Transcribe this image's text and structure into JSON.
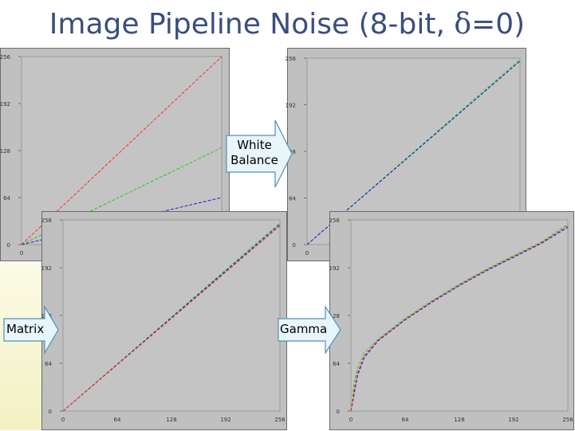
{
  "title": {
    "main": "Image Pipeline Noise (8-bit, ",
    "delta": "δ",
    "tail": "=0)"
  },
  "arrows": {
    "white_balance": {
      "line1": "White",
      "line2": "Balance"
    },
    "matrix": "Matrix",
    "gamma": "Gamma"
  },
  "colors": {
    "background": "#c0c0c0",
    "plot": "#c0c0c0",
    "frame": "#6b6b6b",
    "red": "#ff2a2a",
    "green": "#19d219",
    "blue": "#1a1ad8",
    "arrow_fill": "#e8f5fa",
    "arrow_stroke": "#4f92ba",
    "title": "#3a4e7d"
  },
  "chart_data": [
    {
      "id": "raw",
      "type": "line",
      "title": "",
      "xlabel": "",
      "ylabel": "",
      "xlim": [
        0,
        256
      ],
      "ylim": [
        0,
        256
      ],
      "yticks": [
        "0",
        "64",
        "128",
        "192",
        "256"
      ],
      "xticks": [
        "0"
      ],
      "grid": false,
      "series": [
        {
          "color": "red",
          "x": [
            0,
            256
          ],
          "y": [
            0,
            256
          ]
        },
        {
          "color": "green",
          "x": [
            0,
            256
          ],
          "y": [
            0,
            132
          ]
        },
        {
          "color": "blue",
          "x": [
            0,
            256
          ],
          "y": [
            0,
            64
          ]
        }
      ]
    },
    {
      "id": "white-balance",
      "type": "line",
      "title": "",
      "xlabel": "",
      "ylabel": "",
      "xlim": [
        0,
        256
      ],
      "ylim": [
        0,
        256
      ],
      "yticks": [
        "0",
        "64",
        "128",
        "192",
        "256"
      ],
      "xticks": [
        "0"
      ],
      "grid": false,
      "series": [
        {
          "color": "green",
          "x": [
            0,
            256
          ],
          "y": [
            0,
            254
          ]
        },
        {
          "color": "blue",
          "x": [
            0,
            256
          ],
          "y": [
            0,
            252
          ]
        }
      ]
    },
    {
      "id": "matrix",
      "type": "line",
      "title": "",
      "xlabel": "",
      "ylabel": "",
      "xlim": [
        0,
        256
      ],
      "ylim": [
        0,
        256
      ],
      "xticks": [
        "0",
        "64",
        "128",
        "192",
        "256"
      ],
      "yticks": [
        "0",
        "64",
        "128",
        "192",
        "256"
      ],
      "grid": false,
      "series": [
        {
          "color": "green",
          "x": [
            0,
            256
          ],
          "y": [
            0,
            252
          ]
        },
        {
          "color": "blue",
          "x": [
            0,
            256
          ],
          "y": [
            0,
            250
          ]
        },
        {
          "color": "red",
          "x": [
            0,
            256
          ],
          "y": [
            0,
            248
          ]
        }
      ]
    },
    {
      "id": "gamma",
      "type": "line",
      "title": "",
      "xlabel": "",
      "ylabel": "",
      "xlim": [
        0,
        256
      ],
      "ylim": [
        0,
        256
      ],
      "xticks": [
        "0",
        "64",
        "128",
        "192",
        "256"
      ],
      "yticks": [
        "0",
        "64",
        "128",
        "192",
        "256"
      ],
      "grid": false,
      "series": [
        {
          "color": "green",
          "x": [
            0,
            2,
            4,
            8,
            16,
            32,
            64,
            96,
            128,
            160,
            192,
            224,
            256
          ],
          "y": [
            0,
            18,
            40,
            58,
            78,
            96,
            124,
            148,
            170,
            190,
            208,
            226,
            250
          ]
        },
        {
          "color": "blue",
          "x": [
            0,
            2,
            4,
            8,
            16,
            32,
            64,
            96,
            128,
            160,
            192,
            224,
            256
          ],
          "y": [
            0,
            10,
            24,
            48,
            72,
            94,
            122,
            146,
            168,
            188,
            206,
            224,
            246
          ]
        },
        {
          "color": "red",
          "x": [
            0,
            2,
            4,
            8,
            16,
            32,
            64,
            96,
            128,
            160,
            192,
            224,
            256
          ],
          "y": [
            0,
            12,
            30,
            52,
            74,
            95,
            123,
            147,
            169,
            189,
            207,
            225,
            248
          ]
        }
      ]
    }
  ]
}
